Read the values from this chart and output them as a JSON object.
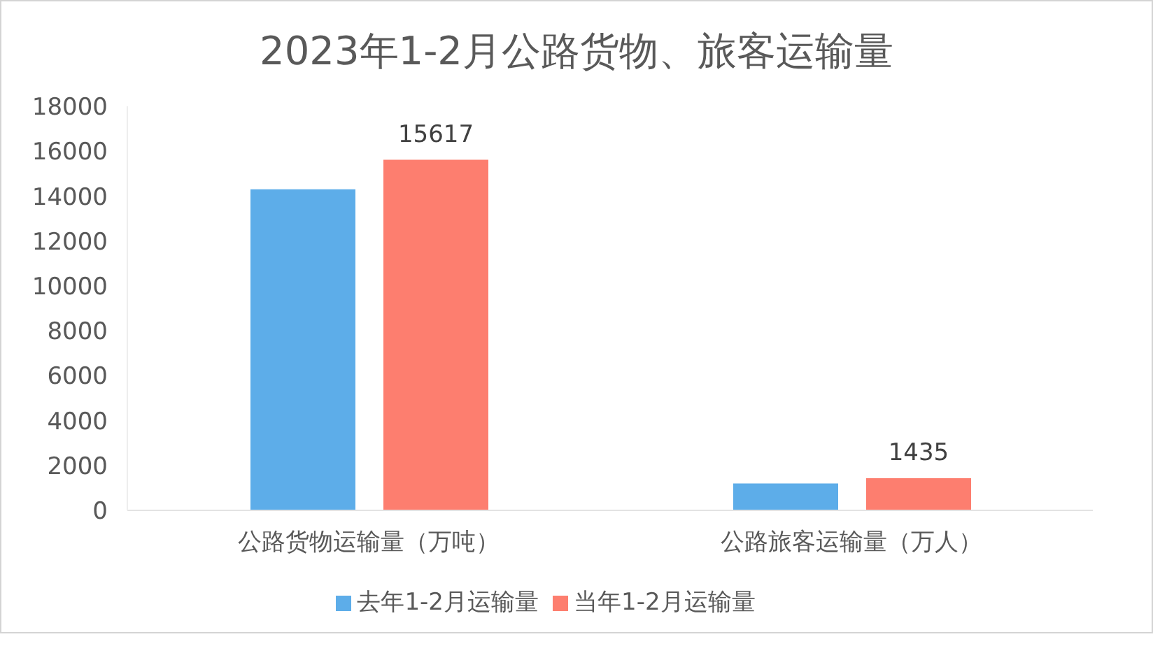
{
  "chart_data": {
    "type": "bar",
    "title": "2023年1-2月公路货物、旅客运输量",
    "categories": [
      "公路货物运输量（万吨）",
      "公路旅客运输量（万人）"
    ],
    "series": [
      {
        "name": "去年1-2月运输量",
        "color": "#5dade9",
        "values": [
          14300,
          1200
        ]
      },
      {
        "name": "当年1-2月运输量",
        "color": "#fd7e6f",
        "values": [
          15617,
          1435
        ],
        "value_labels": [
          "15617",
          "1435"
        ]
      }
    ],
    "ylim": [
      0,
      18000
    ],
    "yticks": [
      0,
      2000,
      4000,
      6000,
      8000,
      10000,
      12000,
      14000,
      16000,
      18000
    ],
    "legend": "bottom"
  }
}
